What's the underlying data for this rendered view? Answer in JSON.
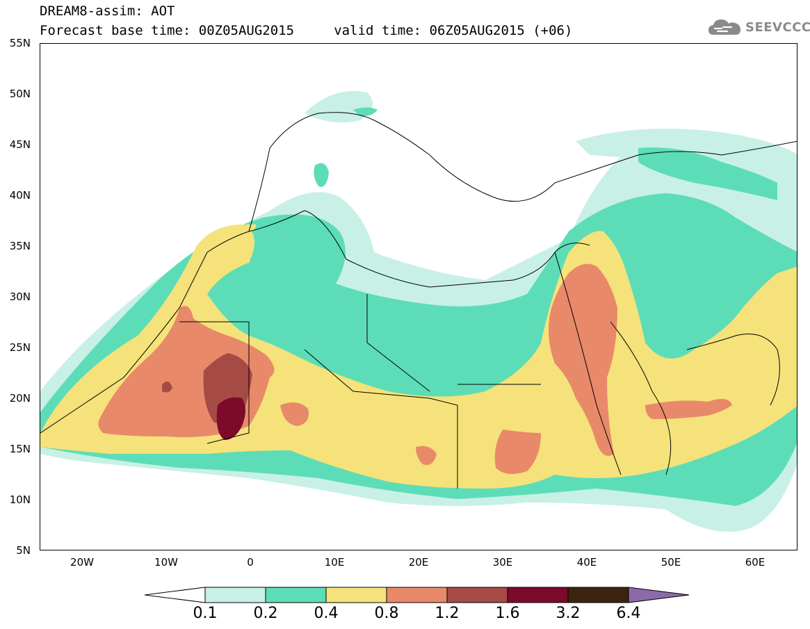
{
  "header": {
    "line1": "DREAM8-assim: AOT",
    "line2": "Forecast base time: 00Z05AUG2015     valid time: 06Z05AUG2015 (+06)"
  },
  "logo": {
    "text": "SEEVCCC",
    "icon": "cloud-icon"
  },
  "map": {
    "lat_labels": [
      "55N",
      "50N",
      "45N",
      "40N",
      "35N",
      "30N",
      "25N",
      "20N",
      "15N",
      "10N",
      "5N"
    ],
    "lon_labels": [
      "20W",
      "10W",
      "0",
      "10E",
      "20E",
      "30E",
      "40E",
      "50E",
      "60E"
    ],
    "lon_range": [
      -25,
      65
    ],
    "lat_range": [
      5,
      55
    ]
  },
  "colorbar": {
    "labels": [
      "0.1",
      "0.2",
      "0.4",
      "0.8",
      "1.2",
      "1.6",
      "3.2",
      "6.4"
    ],
    "colors": [
      "#ffffff",
      "#c8f0e6",
      "#5cddb8",
      "#f5e27a",
      "#e8896a",
      "#a64a45",
      "#7d0a2a",
      "#3c2410",
      "#8c6aa8"
    ]
  }
}
